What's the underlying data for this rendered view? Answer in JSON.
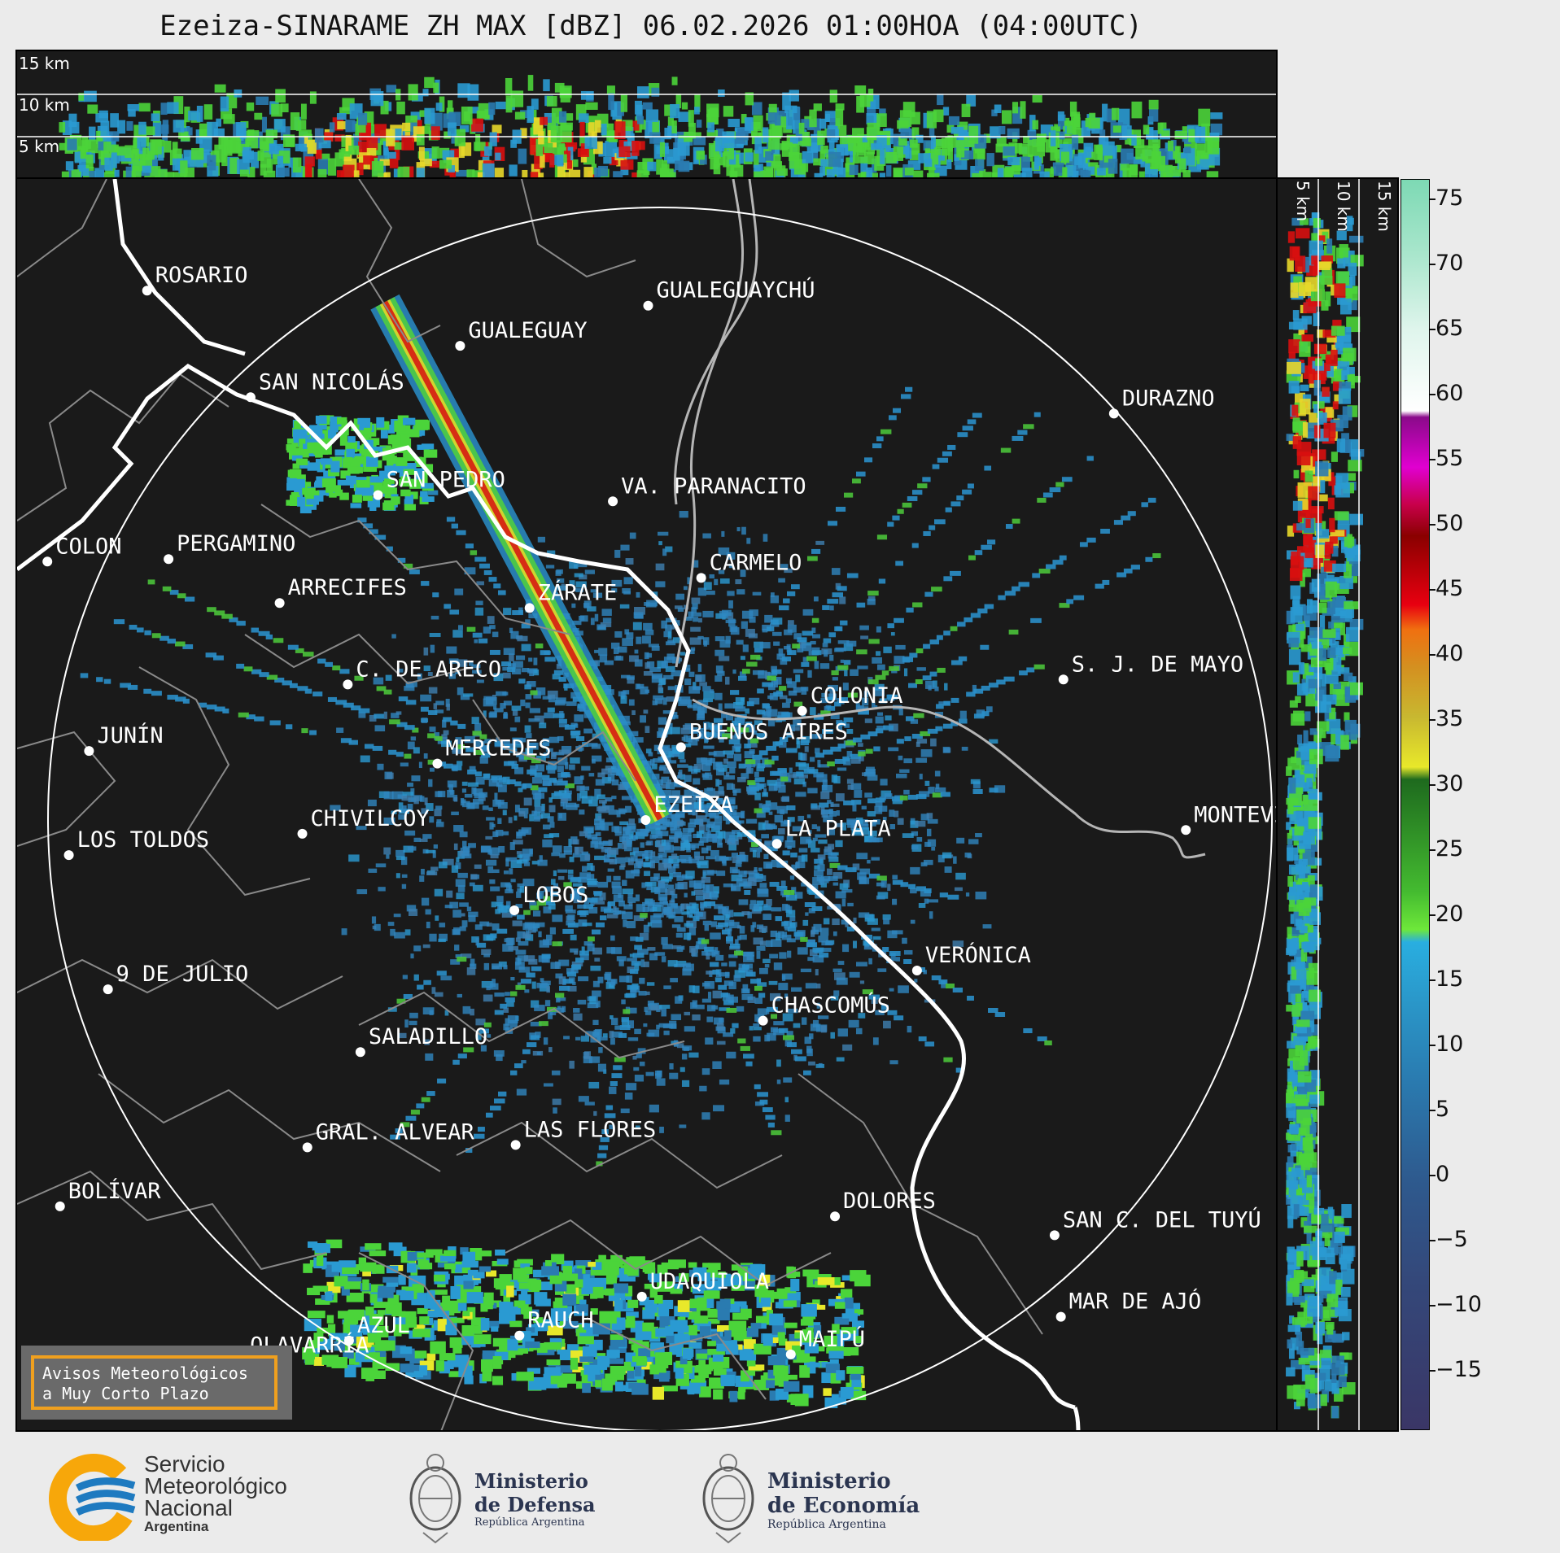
{
  "title": "Ezeiza-SINARAME ZH MAX [dBZ] 06.02.2026 01:00HOA (04:00UTC)",
  "top_panel": {
    "height_labels": [
      "15 km",
      "10 km",
      "5 km"
    ]
  },
  "side_panel": {
    "height_labels": [
      "5 km",
      "10 km",
      "15 km"
    ]
  },
  "colorbar": {
    "ticks": [
      "75",
      "70",
      "65",
      "60",
      "55",
      "50",
      "45",
      "40",
      "35",
      "30",
      "25",
      "20",
      "15",
      "10",
      "5",
      "0",
      "−5",
      "−10",
      "−15"
    ]
  },
  "cities": [
    {
      "name": "ROSARIO",
      "nx": 0.103,
      "ny": 0.089
    },
    {
      "name": "GUALEGUAYCHÚ",
      "nx": 0.5,
      "ny": 0.101
    },
    {
      "name": "GUALEGUAY",
      "nx": 0.351,
      "ny": 0.133
    },
    {
      "name": "SAN NICOLÁS",
      "nx": 0.185,
      "ny": 0.174
    },
    {
      "name": "DURAZNO",
      "nx": 0.869,
      "ny": 0.187
    },
    {
      "name": "SAN PEDRO",
      "nx": 0.286,
      "ny": 0.252
    },
    {
      "name": "VA. PARANACITO",
      "nx": 0.472,
      "ny": 0.257
    },
    {
      "name": "COLON",
      "nx": 0.024,
      "ny": 0.305
    },
    {
      "name": "PERGAMINO",
      "nx": 0.12,
      "ny": 0.303
    },
    {
      "name": "CARMELO",
      "nx": 0.542,
      "ny": 0.318
    },
    {
      "name": "ARRECIFES",
      "nx": 0.208,
      "ny": 0.338
    },
    {
      "name": "ZÁRATE",
      "nx": 0.406,
      "ny": 0.342
    },
    {
      "name": "S. J. DE MAYO",
      "nx": 0.829,
      "ny": 0.399
    },
    {
      "name": "C. DE ARECO",
      "nx": 0.262,
      "ny": 0.403
    },
    {
      "name": "COLONIA",
      "nx": 0.622,
      "ny": 0.424
    },
    {
      "name": "BUENOS AIRES",
      "nx": 0.526,
      "ny": 0.453
    },
    {
      "name": "JUNÍN",
      "nx": 0.057,
      "ny": 0.456
    },
    {
      "name": "MERCEDES",
      "nx": 0.333,
      "ny": 0.466
    },
    {
      "name": "EZEIZA",
      "nx": 0.498,
      "ny": 0.511
    },
    {
      "name": "MONTEVIDEO",
      "nx": 0.926,
      "ny": 0.519
    },
    {
      "name": "CHIVILCOY",
      "nx": 0.226,
      "ny": 0.522
    },
    {
      "name": "LA PLATA",
      "nx": 0.602,
      "ny": 0.53
    },
    {
      "name": "LOS TOLDOS",
      "nx": 0.041,
      "ny": 0.539
    },
    {
      "name": "LOBOS",
      "nx": 0.394,
      "ny": 0.583
    },
    {
      "name": "VERÓNICA",
      "nx": 0.713,
      "ny": 0.631
    },
    {
      "name": "9 DE JULIO",
      "nx": 0.072,
      "ny": 0.646
    },
    {
      "name": "CHASCOMÚS",
      "nx": 0.591,
      "ny": 0.671
    },
    {
      "name": "SALADILLO",
      "nx": 0.272,
      "ny": 0.696
    },
    {
      "name": "GRAL. ALVEAR",
      "nx": 0.23,
      "ny": 0.772
    },
    {
      "name": "LAS FLORES",
      "nx": 0.395,
      "ny": 0.77
    },
    {
      "name": "BOLÍVAR",
      "nx": 0.034,
      "ny": 0.819
    },
    {
      "name": "DOLORES",
      "nx": 0.648,
      "ny": 0.827
    },
    {
      "name": "SAN C. DEL TUYÚ",
      "nx": 0.822,
      "ny": 0.842
    },
    {
      "name": "UDAQUIOLA",
      "nx": 0.495,
      "ny": 0.891
    },
    {
      "name": "MAR DE AJÓ",
      "nx": 0.827,
      "ny": 0.907
    },
    {
      "name": "AZUL",
      "nx": 0.263,
      "ny": 0.926
    },
    {
      "name": "RAUCH",
      "nx": 0.398,
      "ny": 0.922
    },
    {
      "name": "OLAVARRÍA",
      "nx": 0.178,
      "ny": 0.942
    },
    {
      "name": "MAIPÚ",
      "nx": 0.613,
      "ny": 0.937
    }
  ],
  "aviso": {
    "line1": "Avisos Meteorológicos",
    "line2": "a Muy Corto Plazo"
  },
  "logos": {
    "smn": {
      "line1": "Servicio",
      "line2": "Meteorológico",
      "line3": "Nacional",
      "line4": "Argentina"
    },
    "defensa": {
      "line1": "Ministerio",
      "line2": "de Defensa",
      "line3": "República Argentina"
    },
    "economia": {
      "line1": "Ministerio",
      "line2": "de Economía",
      "line3": "República Argentina"
    }
  },
  "colors": {
    "background": "#1a1a1a",
    "frame": "#ebebeb",
    "aviso_border": "#f0a01e",
    "smn_orange": "#f7a70a",
    "smn_blue": "#1e7ac0"
  }
}
